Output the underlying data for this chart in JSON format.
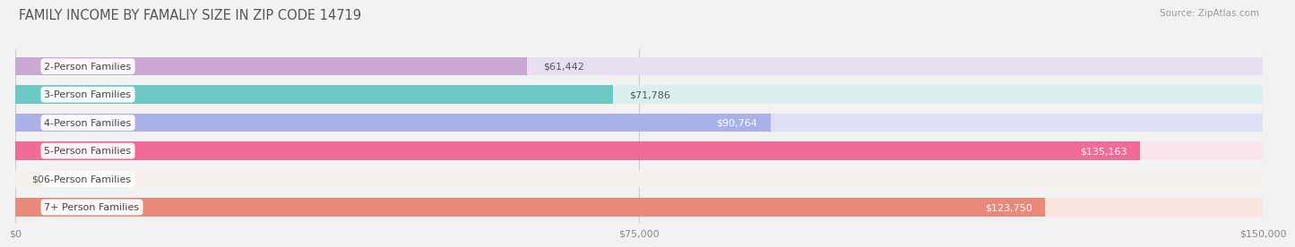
{
  "title": "FAMILY INCOME BY FAMALIY SIZE IN ZIP CODE 14719",
  "source": "Source: ZipAtlas.com",
  "categories": [
    "2-Person Families",
    "3-Person Families",
    "4-Person Families",
    "5-Person Families",
    "6-Person Families",
    "7+ Person Families"
  ],
  "values": [
    61442,
    71786,
    90764,
    135163,
    0,
    123750
  ],
  "bar_colors": [
    "#c9a8d4",
    "#6dc9c5",
    "#a8b2e8",
    "#f06a9a",
    "#f5c9a0",
    "#e8897a"
  ],
  "bar_bg_colors": [
    "#e8e0f0",
    "#daf0ee",
    "#dde0f5",
    "#fce4ef",
    "#f5f0ec",
    "#fae4e0"
  ],
  "xlim": [
    0,
    150000
  ],
  "xticks": [
    0,
    75000,
    150000
  ],
  "xtick_labels": [
    "$0",
    "$75,000",
    "$150,000"
  ],
  "value_labels": [
    "$61,442",
    "$71,786",
    "$90,764",
    "$135,163",
    "$0",
    "$123,750"
  ],
  "value_inside": [
    false,
    false,
    true,
    true,
    false,
    true
  ],
  "background_color": "#f2f2f2",
  "title_fontsize": 10.5,
  "label_fontsize": 8,
  "value_fontsize": 8
}
